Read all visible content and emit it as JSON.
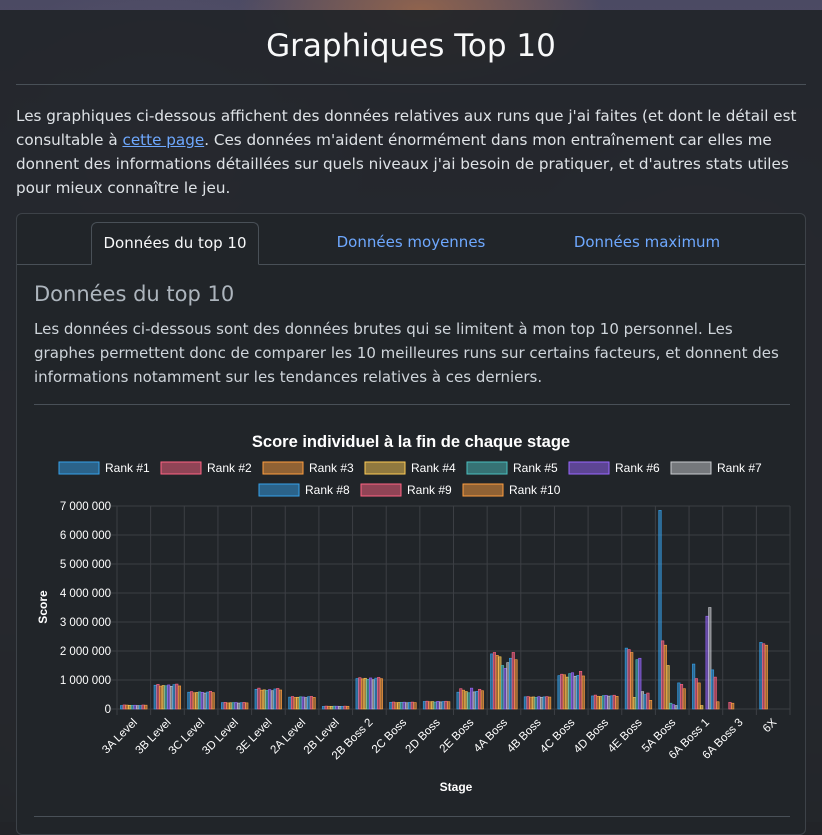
{
  "page": {
    "title": "Graphiques Top 10",
    "intro_before": "Les graphiques ci-dessous affichent des données relatives aux runs que j'ai faites (et dont le détail est consultable à ",
    "intro_link": "cette page",
    "intro_after": ". Ces données m'aident énormément dans mon entraînement car elles me donnent des informations détaillées sur quels niveaux j'ai besoin de pratiquer, et d'autres stats utiles pour mieux connaître le jeu."
  },
  "tabs": [
    {
      "label": "Données du top 10",
      "active": true
    },
    {
      "label": "Données moyennes",
      "active": false
    },
    {
      "label": "Données maximum",
      "active": false
    }
  ],
  "section": {
    "heading": "Données du top 10",
    "description": "Les données ci-dessous sont des données brutes qui se limitent à mon top 10 personnel. Les graphes permettent donc de comparer les 10 meilleures runs sur certains facteurs, et donnent des informations notamment sur les tendances relatives à ces derniers."
  },
  "chart_data": {
    "type": "bar",
    "title": "Score individuel à la fin de chaque stage",
    "xlabel": "Stage",
    "ylabel": "Score",
    "ylim": [
      0,
      7000000
    ],
    "yticks": [
      0,
      1000000,
      2000000,
      3000000,
      4000000,
      5000000,
      6000000,
      7000000
    ],
    "ytick_labels": [
      "0",
      "1 000 000",
      "2 000 000",
      "3 000 000",
      "4 000 000",
      "5 000 000",
      "6 000 000",
      "7 000 000"
    ],
    "grid": true,
    "legend_position": "top",
    "categories": [
      "3A Level",
      "3B Level",
      "3C Level",
      "3D Level",
      "3E Level",
      "2A Level",
      "2B Level",
      "2B Boss 2",
      "2C Boss",
      "2D Boss",
      "2E Boss",
      "4A Boss",
      "4B Boss",
      "4C Boss",
      "4D Boss",
      "4E Boss",
      "5A Boss",
      "6A Boss 1",
      "6A Boss 3",
      "6X"
    ],
    "series": [
      {
        "name": "Rank #1",
        "color": "#36a2eb",
        "values": [
          120000,
          820000,
          580000,
          220000,
          680000,
          410000,
          90000,
          1050000,
          230000,
          260000,
          580000,
          1900000,
          420000,
          1150000,
          450000,
          2100000,
          6850000,
          1550000,
          0,
          2300000
        ]
      },
      {
        "name": "Rank #2",
        "color": "#ff6384",
        "values": [
          140000,
          850000,
          600000,
          230000,
          720000,
          430000,
          100000,
          1080000,
          240000,
          270000,
          700000,
          1950000,
          430000,
          1200000,
          480000,
          2050000,
          2350000,
          1050000,
          230000,
          2250000
        ]
      },
      {
        "name": "Rank #3",
        "color": "#ff9f40",
        "values": [
          135000,
          790000,
          560000,
          210000,
          650000,
          400000,
          95000,
          1040000,
          220000,
          250000,
          650000,
          1850000,
          410000,
          1180000,
          440000,
          1950000,
          2200000,
          900000,
          200000,
          2200000
        ]
      },
      {
        "name": "Rank #4",
        "color": "#ffcd56",
        "values": [
          128000,
          810000,
          570000,
          215000,
          660000,
          405000,
          92000,
          1060000,
          225000,
          255000,
          600000,
          1800000,
          415000,
          1100000,
          430000,
          400000,
          1500000,
          120000,
          0,
          0
        ]
      },
      {
        "name": "Rank #5",
        "color": "#4bc0c0",
        "values": [
          125000,
          800000,
          590000,
          220000,
          640000,
          420000,
          98000,
          1020000,
          230000,
          240000,
          560000,
          1500000,
          400000,
          1220000,
          460000,
          1700000,
          200000,
          0,
          0,
          0
        ]
      },
      {
        "name": "Rank #6",
        "color": "#9966ff",
        "values": [
          130000,
          830000,
          575000,
          225000,
          670000,
          415000,
          97000,
          1070000,
          235000,
          265000,
          720000,
          1400000,
          425000,
          1250000,
          470000,
          1750000,
          150000,
          3200000,
          0,
          0
        ]
      },
      {
        "name": "Rank #7",
        "color": "#c9cbcf",
        "values": [
          118000,
          780000,
          550000,
          205000,
          630000,
          395000,
          90000,
          1010000,
          215000,
          245000,
          590000,
          1600000,
          405000,
          1130000,
          445000,
          600000,
          120000,
          3500000,
          0,
          0
        ]
      },
      {
        "name": "Rank #8",
        "color": "#36a2eb",
        "values": [
          122000,
          840000,
          585000,
          218000,
          690000,
          425000,
          93000,
          1065000,
          228000,
          258000,
          610000,
          1750000,
          418000,
          1160000,
          455000,
          500000,
          900000,
          1350000,
          0,
          0
        ]
      },
      {
        "name": "Rank #9",
        "color": "#ff6384",
        "values": [
          138000,
          860000,
          610000,
          228000,
          710000,
          435000,
          99000,
          1090000,
          238000,
          268000,
          680000,
          1950000,
          428000,
          1300000,
          475000,
          550000,
          850000,
          1100000,
          0,
          0
        ]
      },
      {
        "name": "Rank #10",
        "color": "#ff9f40",
        "values": [
          132000,
          795000,
          565000,
          212000,
          655000,
          402000,
          94000,
          1045000,
          222000,
          252000,
          630000,
          1700000,
          412000,
          1140000,
          438000,
          300000,
          700000,
          250000,
          0,
          0
        ]
      }
    ]
  }
}
